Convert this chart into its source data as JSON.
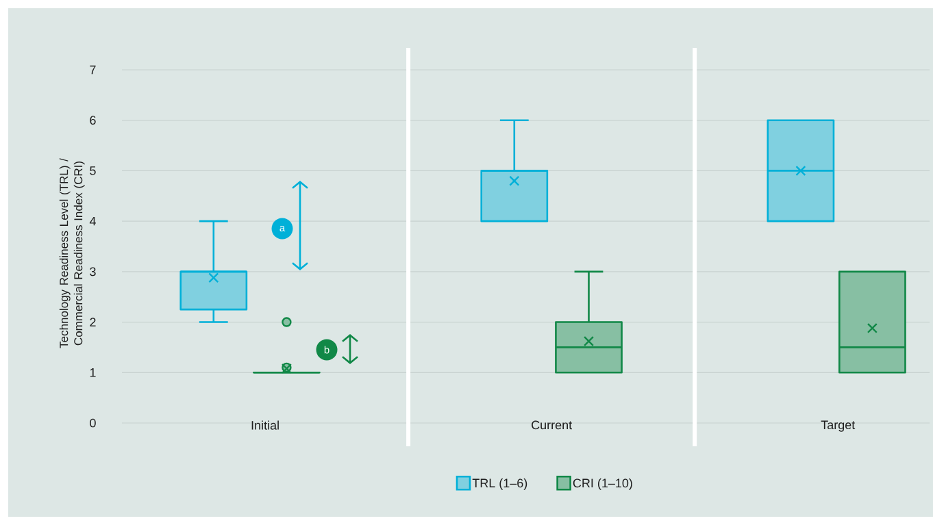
{
  "chart_data": {
    "type": "box",
    "ylabel": "Technology Readiness Level (TRL) / Commercial Readiness Index (CRI)",
    "categories": [
      "Initial",
      "Current",
      "Target"
    ],
    "ylim": [
      0,
      7
    ],
    "yticks": [
      0,
      1,
      2,
      3,
      4,
      5,
      6,
      7
    ],
    "grid": "y",
    "legend": "bottom",
    "series": [
      {
        "name": "TRL (1–6)",
        "color": "#00b0d8",
        "boxes": [
          {
            "low": 2,
            "q1": 2.25,
            "median": 3,
            "q3": 3,
            "high": 4,
            "mean": 2.88
          },
          {
            "low": 4,
            "q1": 4,
            "median": 5,
            "q3": 5,
            "high": 6,
            "mean": 4.8
          },
          {
            "low": 4,
            "q1": 4,
            "median": 5,
            "q3": 6,
            "high": 6,
            "mean": 5
          }
        ]
      },
      {
        "name": "CRI (1–10)",
        "color": "#118847",
        "boxes": [
          {
            "low": 1,
            "q1": 1,
            "median": 1,
            "q3": 1,
            "high": 1,
            "mean": 1.08,
            "outliers": [
              1.1,
              2
            ]
          },
          {
            "low": 1,
            "q1": 1,
            "median": 1.5,
            "q3": 2,
            "high": 3,
            "mean": 1.62
          },
          {
            "low": 1,
            "q1": 1,
            "median": 1.5,
            "q3": 3,
            "high": 3,
            "mean": 1.88
          }
        ]
      }
    ],
    "annotations": [
      "a",
      "b"
    ]
  }
}
